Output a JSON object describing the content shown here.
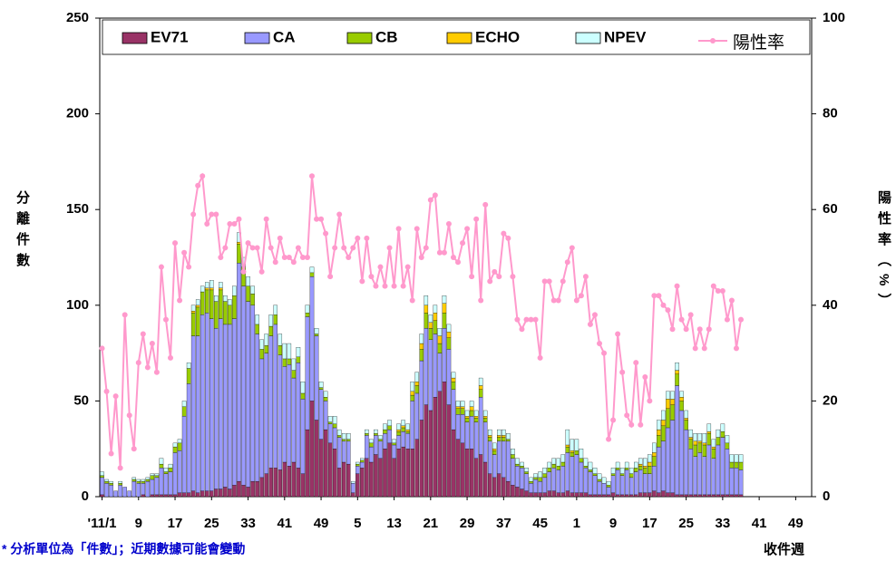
{
  "chart_data": {
    "type": "bar",
    "stacked": true,
    "y_label": "分離件數",
    "y2_label": "陽性率（%）",
    "x_label": "收件週",
    "footnote": "* 分析單位為「件數」；近期數據可能會變動",
    "legend": "top",
    "grid": false,
    "ylim": [
      0,
      250
    ],
    "yticks": [
      0,
      50,
      100,
      150,
      200,
      250
    ],
    "y2lim": [
      0,
      100
    ],
    "y2ticks": [
      0,
      20,
      40,
      60,
      80,
      100
    ],
    "categories": [
      "'11/1",
      null,
      null,
      null,
      null,
      null,
      null,
      null,
      "9",
      null,
      null,
      null,
      null,
      null,
      null,
      null,
      "17",
      null,
      null,
      null,
      null,
      null,
      null,
      null,
      "25",
      null,
      null,
      null,
      null,
      null,
      null,
      null,
      "33",
      null,
      null,
      null,
      null,
      null,
      null,
      null,
      "41",
      null,
      null,
      null,
      null,
      null,
      null,
      null,
      "49",
      null,
      null,
      null,
      null,
      null,
      null,
      null,
      "5",
      null,
      null,
      null,
      null,
      null,
      null,
      null,
      "13",
      null,
      null,
      null,
      null,
      null,
      null,
      null,
      "21",
      null,
      null,
      null,
      null,
      null,
      null,
      null,
      "29",
      null,
      null,
      null,
      null,
      null,
      null,
      null,
      "37",
      null,
      null,
      null,
      null,
      null,
      null,
      null,
      "45",
      null,
      null,
      null,
      null,
      null,
      null,
      null,
      "1",
      null,
      null,
      null,
      null,
      null,
      null,
      null,
      "9",
      null,
      null,
      null,
      null,
      null,
      null,
      null,
      "17",
      null,
      null,
      null,
      null,
      null,
      null,
      null,
      "25",
      null,
      null,
      null,
      null,
      null,
      null,
      null,
      "33",
      null,
      null,
      null,
      null,
      null,
      null,
      null,
      "41",
      null,
      null,
      null,
      null,
      null,
      null,
      null,
      "49",
      null,
      null,
      null
    ],
    "series": [
      {
        "name": "EV71",
        "color": "#993366",
        "values": [
          1,
          0,
          0,
          0,
          0,
          0,
          0,
          0,
          0,
          1,
          0,
          1,
          1,
          1,
          1,
          1,
          1,
          2,
          2,
          2,
          3,
          2,
          3,
          3,
          3,
          4,
          4,
          5,
          4,
          6,
          8,
          6,
          5,
          8,
          8,
          10,
          12,
          15,
          15,
          14,
          18,
          16,
          18,
          15,
          12,
          35,
          50,
          40,
          30,
          35,
          28,
          25,
          15,
          18,
          17,
          2,
          12,
          15,
          20,
          18,
          22,
          20,
          25,
          28,
          20,
          25,
          26,
          25,
          25,
          30,
          40,
          48,
          45,
          52,
          55,
          60,
          48,
          35,
          30,
          28,
          25,
          25,
          20,
          22,
          18,
          12,
          10,
          12,
          10,
          8,
          6,
          5,
          4,
          3,
          2,
          2,
          2,
          2,
          3,
          3,
          2,
          2,
          3,
          2,
          2,
          2,
          2,
          1,
          1,
          1,
          1,
          1,
          2,
          1,
          1,
          1,
          1,
          1,
          2,
          2,
          2,
          3,
          2,
          3,
          2,
          2,
          1,
          1,
          1,
          1,
          1,
          1,
          1,
          1,
          1,
          1,
          1,
          1,
          1,
          1,
          1,
          null,
          null,
          null,
          null,
          null,
          null,
          null,
          null,
          null,
          null,
          null,
          null,
          null,
          null,
          null
        ]
      },
      {
        "name": "CA",
        "color": "#9999ff",
        "values": [
          9,
          7,
          6,
          3,
          6,
          5,
          3,
          8,
          7,
          6,
          8,
          8,
          9,
          14,
          11,
          12,
          22,
          22,
          40,
          57,
          81,
          82,
          92,
          93,
          90,
          84,
          89,
          85,
          86,
          87,
          114,
          104,
          97,
          92,
          77,
          62,
          63,
          69,
          75,
          60,
          50,
          53,
          44,
          55,
          39,
          59,
          65,
          44,
          26,
          15,
          10,
          11,
          16,
          11,
          12,
          5,
          4,
          3,
          12,
          8,
          10,
          9,
          8,
          7,
          7,
          7,
          8,
          8,
          25,
          24,
          31,
          40,
          37,
          33,
          20,
          28,
          29,
          21,
          13,
          15,
          14,
          17,
          19,
          30,
          21,
          17,
          12,
          17,
          19,
          21,
          14,
          11,
          11,
          9,
          5,
          7,
          6,
          8,
          10,
          12,
          12,
          14,
          20,
          19,
          20,
          16,
          13,
          12,
          10,
          7,
          6,
          4,
          9,
          13,
          10,
          13,
          9,
          12,
          12,
          10,
          10,
          13,
          24,
          26,
          34,
          38,
          57,
          44,
          34,
          24,
          20,
          22,
          20,
          26,
          19,
          26,
          30,
          24,
          14,
          14,
          13,
          null,
          null,
          null,
          null,
          null,
          null,
          null,
          null,
          null,
          null,
          null,
          null,
          null,
          null,
          null
        ]
      },
      {
        "name": "CB",
        "color": "#99cc00",
        "values": [
          1,
          1,
          1,
          0,
          1,
          0,
          0,
          1,
          1,
          1,
          1,
          2,
          1,
          2,
          1,
          2,
          3,
          4,
          5,
          8,
          12,
          15,
          12,
          12,
          15,
          14,
          15,
          12,
          10,
          12,
          10,
          10,
          8,
          6,
          5,
          5,
          4,
          5,
          5,
          5,
          4,
          3,
          4,
          3,
          3,
          2,
          2,
          1,
          1,
          2,
          1,
          2,
          1,
          1,
          1,
          0,
          1,
          1,
          1,
          2,
          1,
          1,
          2,
          2,
          1,
          2,
          2,
          1,
          3,
          4,
          6,
          8,
          6,
          7,
          5,
          8,
          6,
          4,
          3,
          3,
          2,
          3,
          2,
          4,
          2,
          2,
          2,
          2,
          2,
          1,
          2,
          1,
          1,
          1,
          1,
          1,
          2,
          2,
          2,
          2,
          2,
          2,
          3,
          2,
          2,
          2,
          1,
          1,
          1,
          1,
          0,
          1,
          1,
          1,
          1,
          1,
          2,
          2,
          2,
          3,
          4,
          5,
          6,
          8,
          10,
          8,
          6,
          5,
          5,
          5,
          6,
          5,
          6,
          6,
          5,
          4,
          3,
          3,
          3,
          3,
          4,
          null,
          null,
          null,
          null,
          null,
          null,
          null,
          null,
          null,
          null,
          null,
          null,
          null,
          null,
          null
        ]
      },
      {
        "name": "ECHO",
        "color": "#ffcc00",
        "values": [
          0,
          0,
          0,
          0,
          0,
          0,
          0,
          0,
          0,
          0,
          0,
          0,
          0,
          0,
          0,
          0,
          0,
          0,
          0,
          0,
          1,
          1,
          0,
          1,
          1,
          0,
          1,
          0,
          0,
          0,
          1,
          0,
          0,
          0,
          0,
          0,
          0,
          0,
          0,
          0,
          0,
          0,
          0,
          0,
          0,
          0,
          0,
          0,
          0,
          0,
          0,
          0,
          0,
          0,
          0,
          0,
          0,
          0,
          0,
          0,
          0,
          0,
          0,
          0,
          0,
          1,
          1,
          1,
          2,
          2,
          3,
          4,
          3,
          4,
          4,
          5,
          3,
          2,
          1,
          1,
          1,
          2,
          1,
          2,
          1,
          1,
          1,
          1,
          1,
          0,
          0,
          0,
          0,
          0,
          0,
          0,
          0,
          0,
          0,
          0,
          0,
          0,
          1,
          1,
          0,
          0,
          0,
          0,
          0,
          0,
          0,
          0,
          0,
          0,
          0,
          0,
          0,
          0,
          1,
          1,
          2,
          2,
          3,
          3,
          5,
          3,
          2,
          2,
          1,
          1,
          2,
          1,
          1,
          1,
          1,
          0,
          0,
          0,
          0,
          0,
          0,
          null,
          null,
          null,
          null,
          null,
          null,
          null,
          null,
          null,
          null,
          null,
          null,
          null,
          null,
          null
        ]
      },
      {
        "name": "NPEV",
        "color": "#ccffff",
        "values": [
          2,
          1,
          1,
          0,
          1,
          0,
          0,
          1,
          1,
          1,
          1,
          1,
          1,
          3,
          2,
          2,
          2,
          2,
          3,
          3,
          3,
          3,
          3,
          3,
          4,
          3,
          3,
          3,
          3,
          5,
          5,
          5,
          5,
          4,
          5,
          5,
          6,
          6,
          5,
          6,
          8,
          8,
          6,
          5,
          6,
          4,
          3,
          3,
          3,
          3,
          3,
          4,
          3,
          3,
          3,
          1,
          1,
          1,
          2,
          2,
          2,
          2,
          3,
          3,
          2,
          3,
          3,
          3,
          5,
          5,
          5,
          5,
          4,
          4,
          4,
          4,
          4,
          3,
          3,
          3,
          3,
          3,
          3,
          4,
          3,
          3,
          3,
          3,
          3,
          3,
          3,
          3,
          2,
          2,
          2,
          2,
          3,
          3,
          3,
          3,
          4,
          4,
          8,
          6,
          6,
          5,
          4,
          4,
          3,
          3,
          3,
          2,
          3,
          3,
          3,
          3,
          3,
          3,
          3,
          4,
          4,
          5,
          5,
          5,
          4,
          4,
          4,
          3,
          4,
          4,
          4,
          4,
          5,
          4,
          4,
          4,
          4,
          4,
          4,
          4,
          4,
          null,
          null,
          null,
          null,
          null,
          null,
          null,
          null,
          null,
          null,
          null,
          null,
          null,
          null,
          null
        ]
      },
      {
        "name": "陽性率",
        "color": "#ff99cc",
        "type": "line",
        "axis": "y2",
        "values": [
          31,
          22,
          9,
          21,
          6,
          38,
          17,
          10,
          28,
          34,
          27,
          32,
          26,
          48,
          37,
          29,
          53,
          41,
          51,
          48,
          59,
          65,
          67,
          57,
          59,
          59,
          50,
          52,
          57,
          57,
          58,
          47,
          53,
          52,
          52,
          47,
          58,
          52,
          49,
          54,
          50,
          50,
          49,
          52,
          50,
          50,
          67,
          58,
          58,
          55,
          46,
          52,
          59,
          52,
          50,
          52,
          54,
          45,
          54,
          46,
          44,
          48,
          44,
          52,
          44,
          56,
          44,
          48,
          41,
          56,
          50,
          52,
          62,
          63,
          51,
          51,
          57,
          50,
          49,
          53,
          56,
          46,
          58,
          41,
          61,
          45,
          47,
          46,
          55,
          54,
          46,
          37,
          35,
          37,
          37,
          37,
          29,
          45,
          45,
          41,
          41,
          45,
          49,
          52,
          41,
          42,
          46,
          36,
          38,
          32,
          30,
          12,
          16,
          34,
          26,
          17,
          15,
          28,
          15,
          25,
          20,
          42,
          42,
          40,
          39,
          35,
          44,
          37,
          35,
          38,
          31,
          35,
          31,
          35,
          44,
          43,
          43,
          37,
          41,
          31,
          37,
          null,
          null,
          null,
          null,
          null,
          null,
          null,
          null,
          null,
          null,
          null,
          null,
          null,
          null,
          null
        ]
      }
    ]
  }
}
